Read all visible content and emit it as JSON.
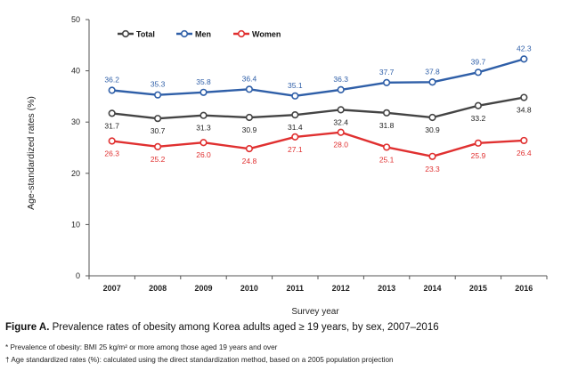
{
  "chart_data": {
    "type": "line",
    "title": "",
    "xlabel": "Survey year",
    "ylabel": "Age-standardized rates (%)",
    "ylim": [
      0,
      50
    ],
    "yticks": [
      0,
      10,
      20,
      30,
      40,
      50
    ],
    "grid": false,
    "legend_position": "top-left",
    "categories": [
      "2007",
      "2008",
      "2009",
      "2010",
      "2011",
      "2012",
      "2013",
      "2014",
      "2015",
      "2016"
    ],
    "series": [
      {
        "name": "Total",
        "color": "#444444",
        "label_position": "below",
        "values": [
          31.7,
          30.7,
          31.3,
          30.9,
          31.4,
          32.4,
          31.8,
          30.9,
          33.2,
          34.8
        ],
        "labels": [
          "31.7",
          "30.7",
          "31.3",
          "30.9",
          "31.4",
          "32.4",
          "31.8",
          "30.9",
          "33.2",
          "34.8"
        ]
      },
      {
        "name": "Men",
        "color": "#2f5fa8",
        "label_position": "above",
        "values": [
          36.2,
          35.3,
          35.8,
          36.4,
          35.1,
          36.3,
          37.7,
          37.8,
          39.7,
          42.3
        ],
        "labels": [
          "36.2",
          "35.3",
          "35.8",
          "36.4",
          "35.1",
          "36.3",
          "37.7",
          "37.8",
          "39.7",
          "42.3"
        ]
      },
      {
        "name": "Women",
        "color": "#e03030",
        "label_position": "below",
        "values": [
          26.3,
          25.2,
          26.0,
          24.8,
          27.1,
          28.0,
          25.1,
          23.3,
          25.9,
          26.4
        ],
        "labels": [
          "26.3",
          "25.2",
          "26.0",
          "24.8",
          "27.1",
          "28.0",
          "25.1",
          "23.3",
          "25.9",
          "26.4"
        ]
      }
    ]
  },
  "figure": {
    "caption_label": "Figure A.",
    "caption_text": " Prevalence rates of obesity among Korea adults aged ≥ 19 years, by sex, 2007–2016",
    "note1": "* Prevalence of obesity: BMI 25 kg/m² or more among those aged 19 years and over",
    "note2": "† Age standardized rates (%): calculated using the direct standardization method, based on a 2005 population projection"
  }
}
